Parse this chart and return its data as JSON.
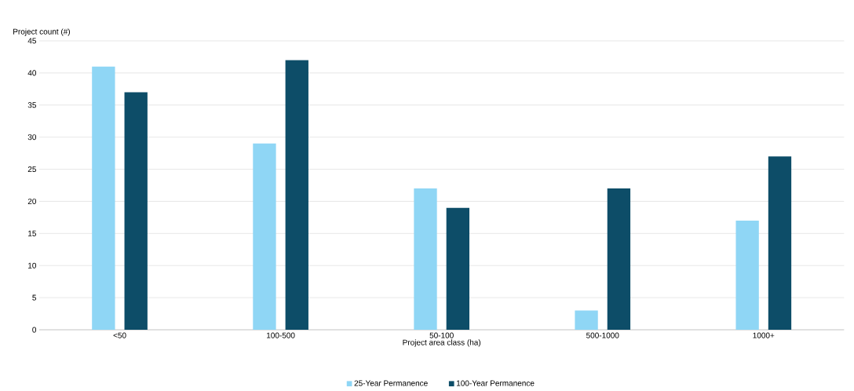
{
  "chart_data": {
    "type": "bar",
    "xlabel": "Project area class (ha)",
    "ylabel": "Project count (#)",
    "categories": [
      "<50",
      "100-500",
      "50-100",
      "500-1000",
      "1000+"
    ],
    "series": [
      {
        "name": "25-Year Permanence",
        "color": "#8fd6f5",
        "values": [
          41,
          29,
          22,
          3,
          17
        ]
      },
      {
        "name": "100-Year Permanence",
        "color": "#0d4d68",
        "values": [
          37,
          42,
          19,
          22,
          27
        ]
      }
    ],
    "ylim": [
      0,
      45
    ],
    "yticks": [
      0,
      5,
      10,
      15,
      20,
      25,
      30,
      35,
      40,
      45
    ],
    "grid": "y",
    "legend": "bottom"
  }
}
